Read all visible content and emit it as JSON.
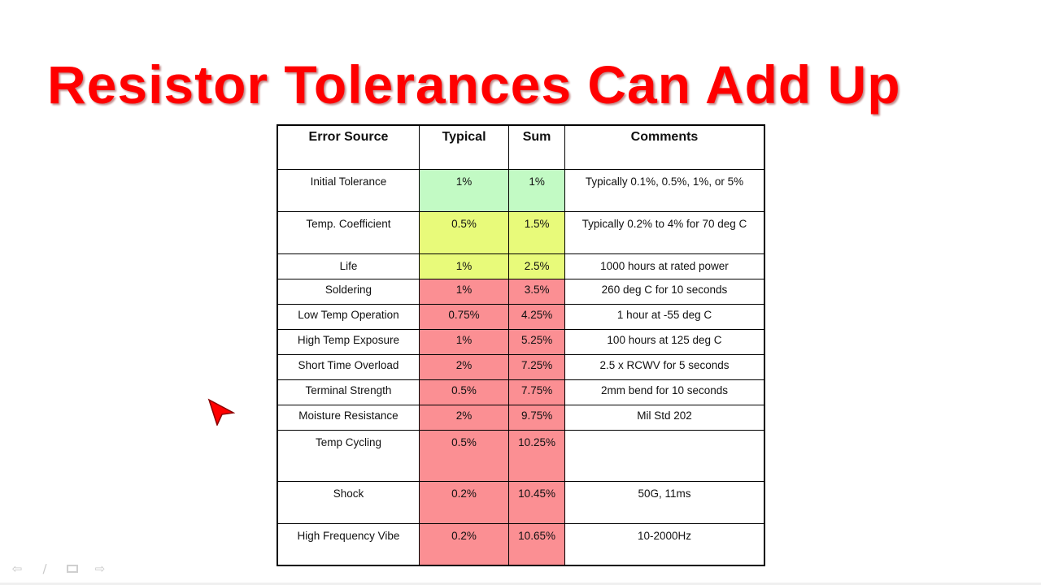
{
  "title": "Resistor Tolerances Can Add Up",
  "colors": {
    "title": "#ff0000",
    "green": "#c2fac4",
    "yellow": "#e8fa7a",
    "red": "#fb8f93"
  },
  "table": {
    "headers": [
      "Error Source",
      "Typical",
      "Sum",
      "Comments"
    ],
    "rows": [
      {
        "source": "Initial Tolerance",
        "typical": "1%",
        "sum": "1%",
        "comment": "Typically 0.1%, 0.5%, 1%, or 5%",
        "status": "green"
      },
      {
        "source": "Temp. Coefficient",
        "typical": "0.5%",
        "sum": "1.5%",
        "comment": "Typically 0.2% to 4% for 70 deg C",
        "status": "yellow"
      },
      {
        "source": "Life",
        "typical": "1%",
        "sum": "2.5%",
        "comment": "1000 hours at rated power",
        "status": "yellow"
      },
      {
        "source": "Soldering",
        "typical": "1%",
        "sum": "3.5%",
        "comment": "260 deg C for 10 seconds",
        "status": "red"
      },
      {
        "source": "Low Temp Operation",
        "typical": "0.75%",
        "sum": "4.25%",
        "comment": "1 hour at -55 deg C",
        "status": "red"
      },
      {
        "source": "High Temp Exposure",
        "typical": "1%",
        "sum": "5.25%",
        "comment": "100 hours at 125 deg C",
        "status": "red"
      },
      {
        "source": "Short Time Overload",
        "typical": "2%",
        "sum": "7.25%",
        "comment": "2.5 x RCWV for 5 seconds",
        "status": "red"
      },
      {
        "source": "Terminal Strength",
        "typical": "0.5%",
        "sum": "7.75%",
        "comment": "2mm bend for 10 seconds",
        "status": "red"
      },
      {
        "source": "Moisture Resistance",
        "typical": "2%",
        "sum": "9.75%",
        "comment": "Mil Std 202",
        "status": "red"
      },
      {
        "source": "Temp Cycling",
        "typical": "0.5%",
        "sum": "10.25%",
        "comment": "",
        "status": "red"
      },
      {
        "source": "Shock",
        "typical": "0.2%",
        "sum": "10.45%",
        "comment": "50G, 11ms",
        "status": "red"
      },
      {
        "source": "High Frequency Vibe",
        "typical": "0.2%",
        "sum": "10.65%",
        "comment": "10-2000Hz",
        "status": "red"
      }
    ]
  },
  "nav": {
    "prev_icon": "arrow-left-icon",
    "pen_icon": "pen-icon",
    "slide_icon": "slide-icon",
    "next_icon": "arrow-right-icon"
  }
}
